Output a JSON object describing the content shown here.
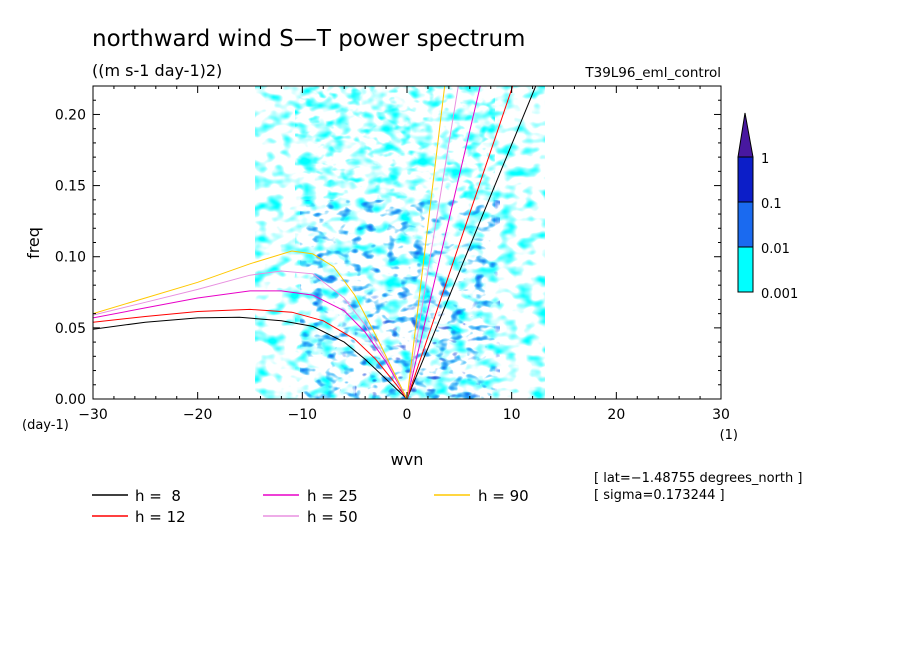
{
  "chart_data": {
    "type": "heatmap",
    "title": "northward wind S—T power spectrum",
    "subtitle": "((m s-1 day-1)2)",
    "run_label": "T39L96_eml_control",
    "xlabel": "wvn",
    "ylabel": "freq",
    "x_unit_label": "(1)",
    "y_unit_label": "(day-1)",
    "xlim": [
      -30,
      30
    ],
    "ylim": [
      0,
      0.22
    ],
    "x_ticks": [
      -30,
      -20,
      -10,
      0,
      10,
      20,
      30
    ],
    "x_tick_labels": [
      "−30",
      "−20",
      "−10",
      "0",
      "10",
      "20",
      "30"
    ],
    "y_ticks": [
      0,
      0.05,
      0.1,
      0.15,
      0.2
    ],
    "y_tick_labels": [
      "0.00",
      "0.05",
      "0.10",
      "0.15",
      "0.20"
    ],
    "colorbar": {
      "levels": [
        "0.001",
        "0.01",
        "0.1",
        "1"
      ],
      "colors": [
        "#00ffff",
        "#1a6af0",
        "#0c1ec8",
        "#4818a0"
      ]
    },
    "annotations": [
      "[ lat=−1.48755 degrees_north ]",
      "[ sigma=0.173244 ]"
    ],
    "legend": [
      {
        "label": "h =  8",
        "color": "#000000"
      },
      {
        "label": "h = 12",
        "color": "#ff0000"
      },
      {
        "label": "h = 25",
        "color": "#e800c8"
      },
      {
        "label": "h = 50",
        "color": "#e890e0"
      },
      {
        "label": "h = 90",
        "color": "#ffc800"
      }
    ],
    "series": [
      {
        "name": "h = 8",
        "color": "#000000",
        "kelvin_peak_k": 12.3,
        "rossby": [
          [
            -30,
            0.049
          ],
          [
            -25,
            0.054
          ],
          [
            -20,
            0.057
          ],
          [
            -16,
            0.0575
          ],
          [
            -12,
            0.055
          ],
          [
            -9,
            0.051
          ],
          [
            -6,
            0.04
          ],
          [
            -4,
            0.028
          ],
          [
            -2,
            0.014
          ],
          [
            0,
            0
          ]
        ]
      },
      {
        "name": "h = 12",
        "color": "#ff0000",
        "kelvin_peak_k": 10.1,
        "rossby": [
          [
            -30,
            0.054
          ],
          [
            -25,
            0.058
          ],
          [
            -20,
            0.0615
          ],
          [
            -15,
            0.063
          ],
          [
            -11,
            0.061
          ],
          [
            -8,
            0.055
          ],
          [
            -5,
            0.042
          ],
          [
            -3,
            0.028
          ],
          [
            -1,
            0.01
          ],
          [
            0,
            0
          ]
        ]
      },
      {
        "name": "h = 25",
        "color": "#e800c8",
        "kelvin_peak_k": 7.0,
        "rossby": [
          [
            -30,
            0.057
          ],
          [
            -25,
            0.064
          ],
          [
            -20,
            0.071
          ],
          [
            -15,
            0.076
          ],
          [
            -12,
            0.076
          ],
          [
            -9,
            0.073
          ],
          [
            -6,
            0.062
          ],
          [
            -4,
            0.047
          ],
          [
            -2,
            0.026
          ],
          [
            0,
            0
          ]
        ]
      },
      {
        "name": "h = 50",
        "color": "#e890e0",
        "kelvin_peak_k": 4.9,
        "rossby": [
          [
            -30,
            0.059
          ],
          [
            -25,
            0.068
          ],
          [
            -20,
            0.077
          ],
          [
            -15,
            0.087
          ],
          [
            -12,
            0.09
          ],
          [
            -9,
            0.088
          ],
          [
            -6,
            0.071
          ],
          [
            -4,
            0.052
          ],
          [
            -2,
            0.028
          ],
          [
            0,
            0
          ]
        ]
      },
      {
        "name": "h = 90",
        "color": "#ffc800",
        "kelvin_peak_k": 3.6,
        "rossby": [
          [
            -30,
            0.06
          ],
          [
            -25,
            0.071
          ],
          [
            -20,
            0.082
          ],
          [
            -15,
            0.095
          ],
          [
            -11,
            0.104
          ],
          [
            -9,
            0.102
          ],
          [
            -7,
            0.093
          ],
          [
            -5,
            0.073
          ],
          [
            -3,
            0.045
          ],
          [
            0,
            0
          ]
        ]
      }
    ]
  }
}
